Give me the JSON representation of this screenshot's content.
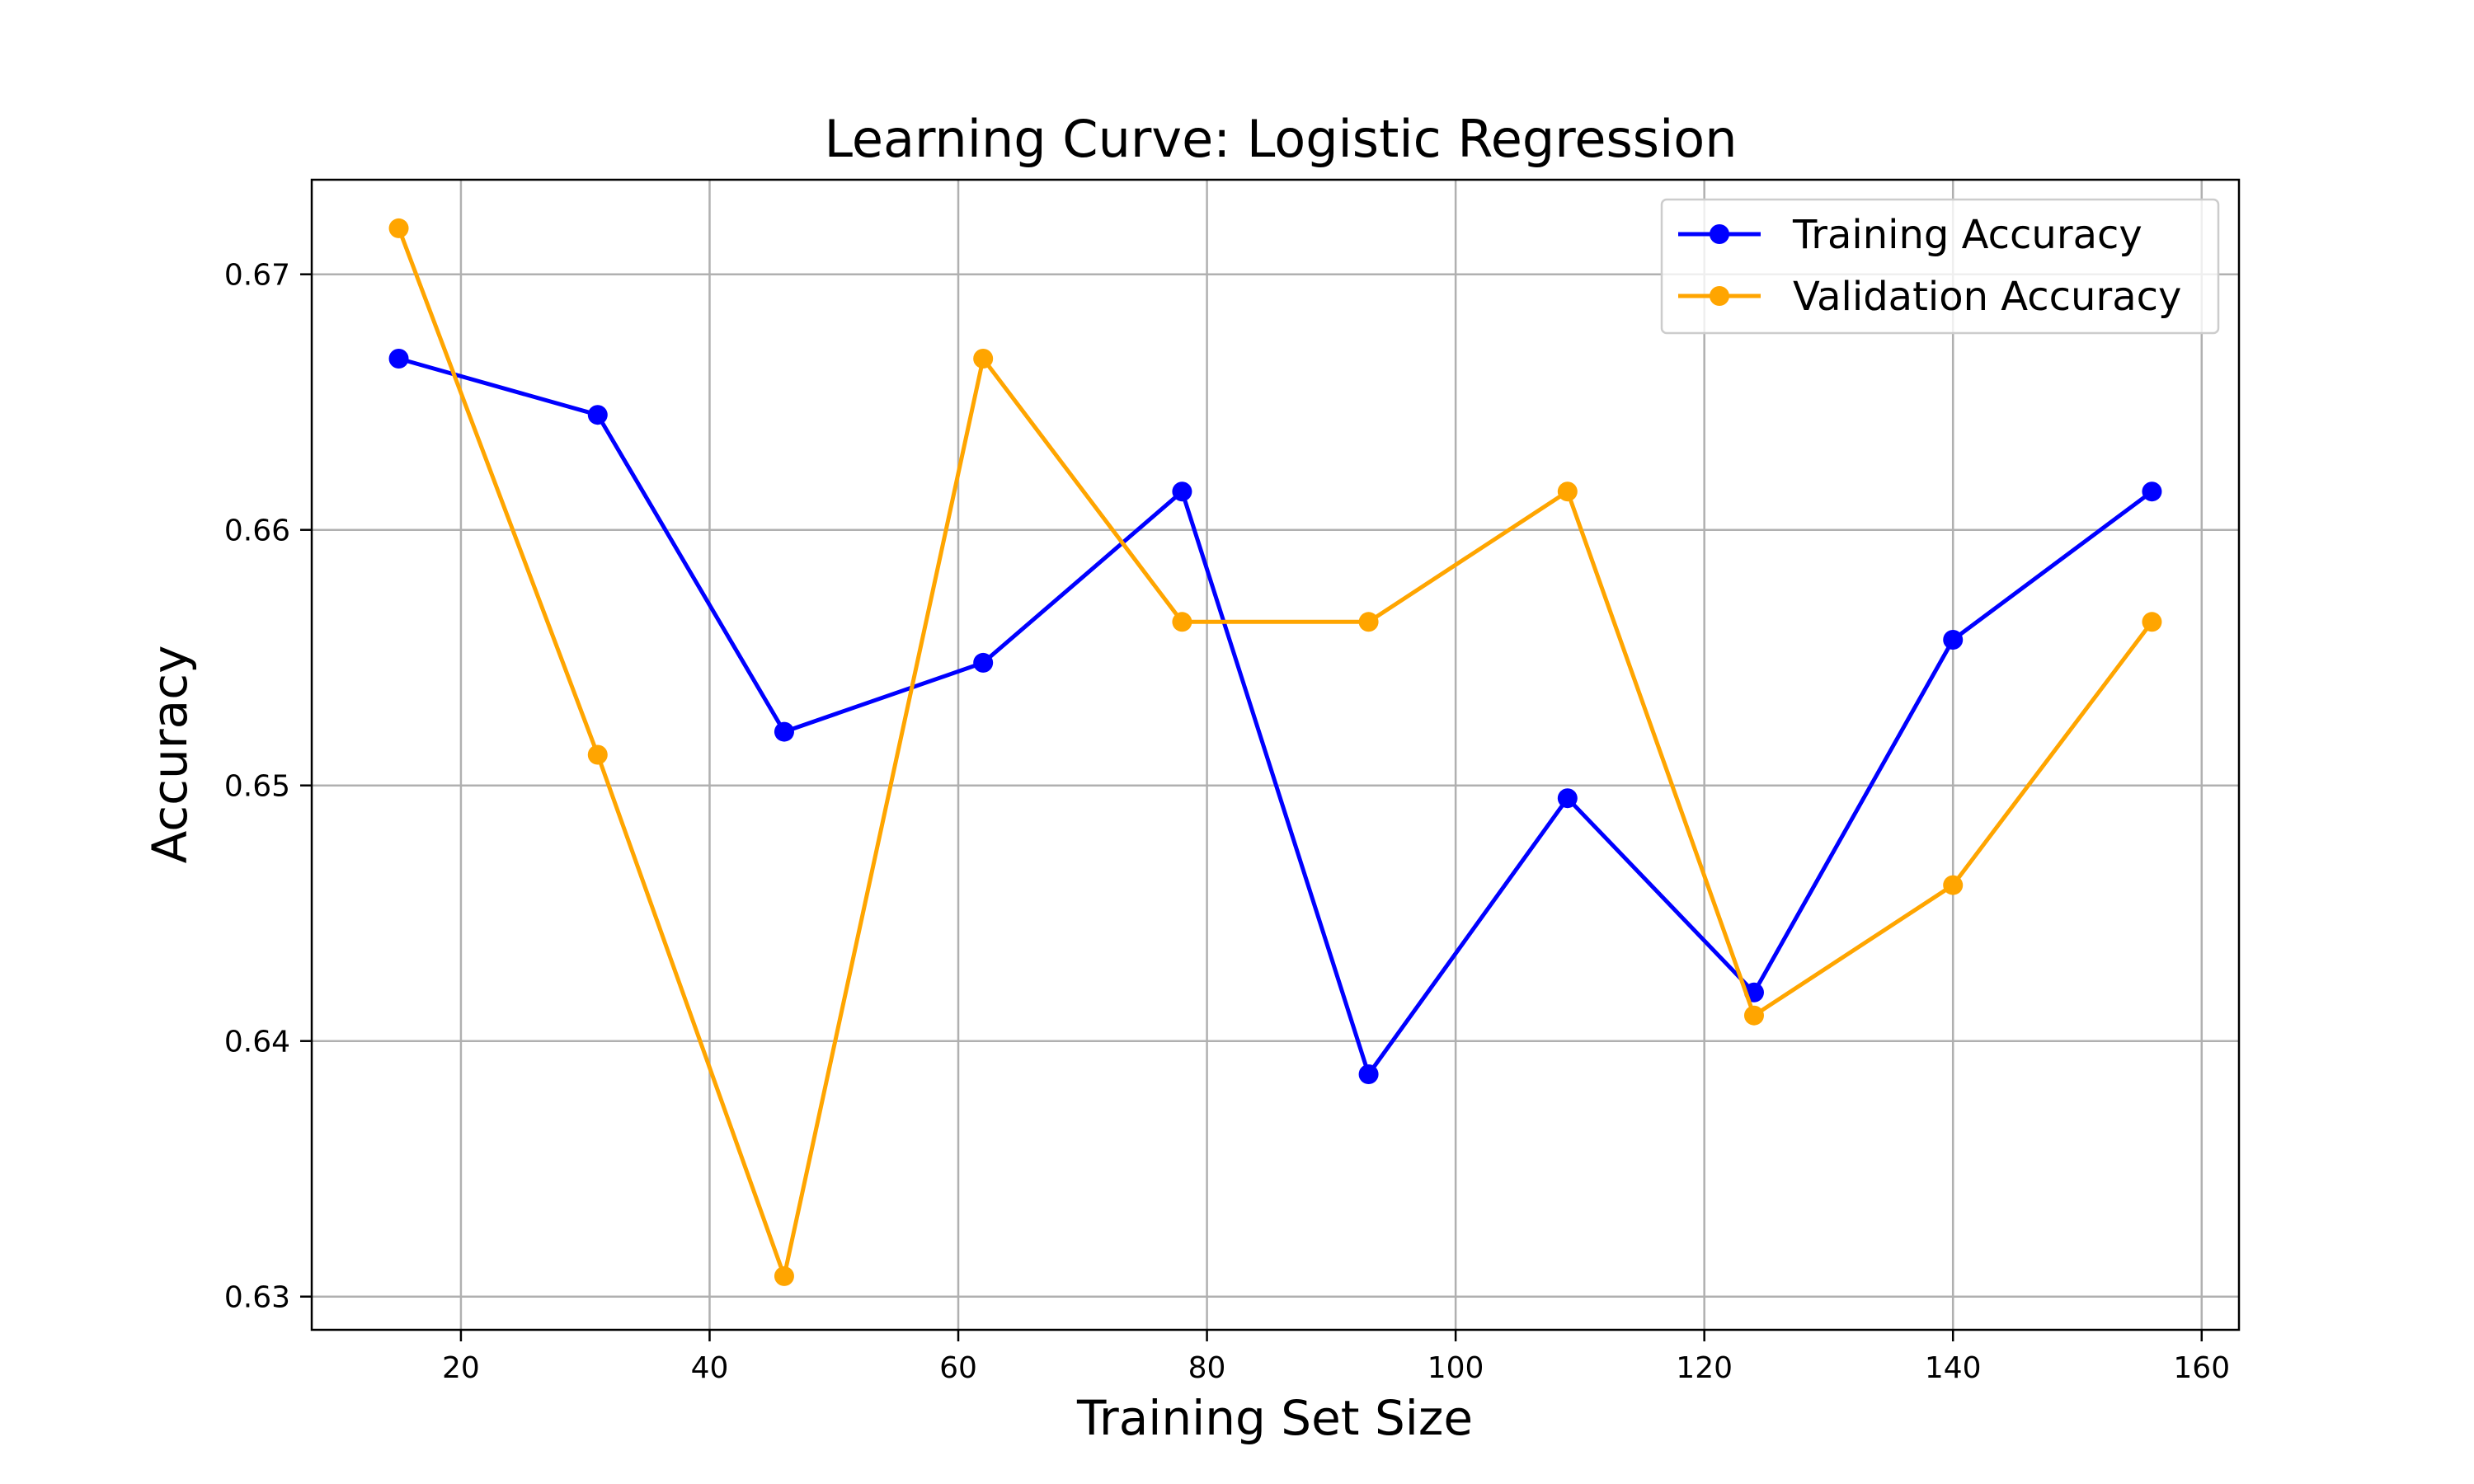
{
  "chart_data": {
    "type": "line",
    "title": "Learning Curve: Logistic Regression",
    "xlabel": "Training Set Size",
    "ylabel": "Accuracy",
    "xlim": [
      8,
      163
    ],
    "ylim": [
      0.6287,
      0.6737
    ],
    "x_ticks": [
      20,
      40,
      60,
      80,
      100,
      120,
      140,
      160
    ],
    "y_ticks": [
      0.63,
      0.64,
      0.65,
      0.66,
      0.67
    ],
    "x_tick_labels": [
      "20",
      "40",
      "60",
      "80",
      "100",
      "120",
      "140",
      "160"
    ],
    "y_tick_labels": [
      "0.63",
      "0.64",
      "0.65",
      "0.66",
      "0.67"
    ],
    "grid": true,
    "legend_position": "top-right",
    "x": [
      15,
      31,
      46,
      62,
      78,
      93,
      109,
      124,
      140,
      156
    ],
    "series": [
      {
        "name": "Training Accuracy",
        "color": "#0000ff",
        "marker": "circle",
        "values": [
          0.6667,
          0.6645,
          0.6521,
          0.6548,
          0.6615,
          0.6387,
          0.6495,
          0.6419,
          0.6557,
          0.6615
        ]
      },
      {
        "name": "Validation Accuracy",
        "color": "#ffa500",
        "marker": "circle",
        "values": [
          0.6718,
          0.6512,
          0.6308,
          0.6667,
          0.6564,
          0.6564,
          0.6615,
          0.641,
          0.6461,
          0.6564
        ]
      }
    ]
  }
}
